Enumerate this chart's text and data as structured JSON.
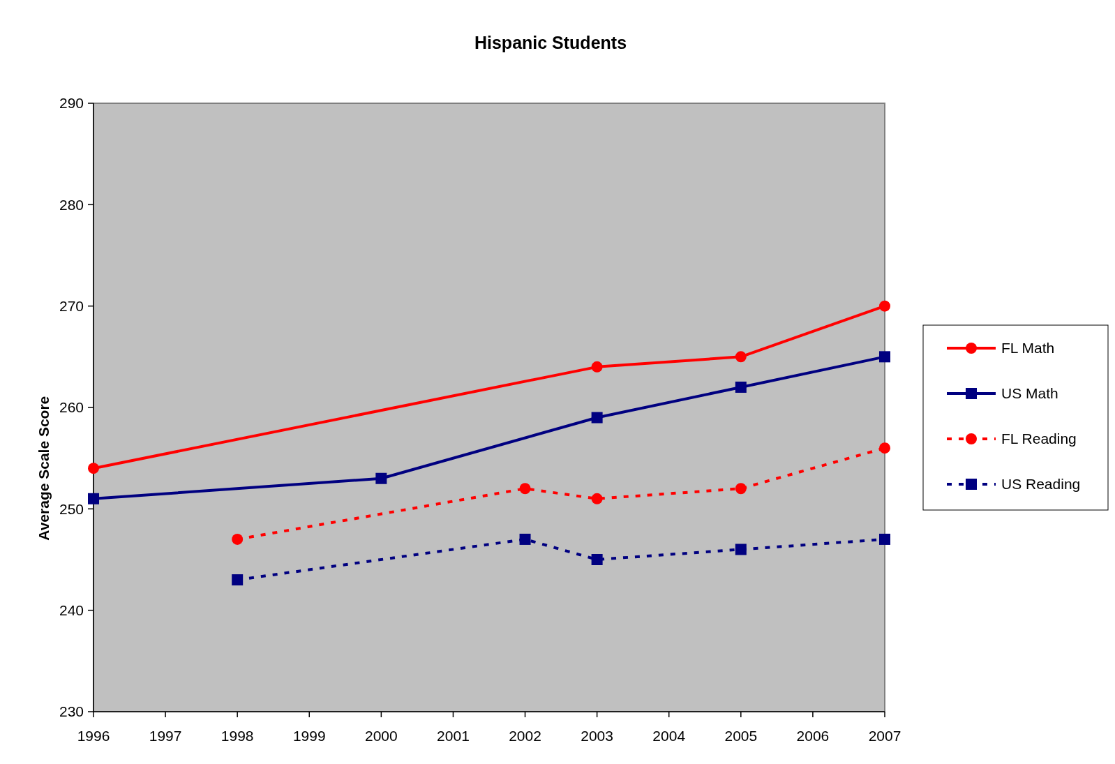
{
  "chart_data": {
    "type": "line",
    "title": "Hispanic Students",
    "ylabel": "Average Scale Score",
    "xlim": [
      1996,
      2007
    ],
    "xticks": [
      1996,
      1997,
      1998,
      1999,
      2000,
      2001,
      2002,
      2003,
      2004,
      2005,
      2006,
      2007
    ],
    "ylim": [
      230,
      290
    ],
    "yticks": [
      230,
      240,
      250,
      260,
      270,
      280,
      290
    ],
    "grid": false,
    "legend": "right",
    "series": [
      {
        "name": "FL Math",
        "color": "#ff0000",
        "marker": "circle",
        "line_style": "solid",
        "x": [
          1996,
          2003,
          2005,
          2007
        ],
        "values": [
          254,
          264,
          265,
          270
        ]
      },
      {
        "name": "US Math",
        "color": "#000080",
        "marker": "square",
        "line_style": "solid",
        "x": [
          1996,
          2000,
          2003,
          2005,
          2007
        ],
        "values": [
          251,
          253,
          259,
          262,
          265
        ]
      },
      {
        "name": "FL Reading",
        "color": "#ff0000",
        "marker": "circle",
        "line_style": "dotted",
        "x": [
          1998,
          2002,
          2003,
          2005,
          2007
        ],
        "values": [
          247,
          252,
          251,
          252,
          256
        ]
      },
      {
        "name": "US Reading",
        "color": "#000080",
        "marker": "square",
        "line_style": "dotted",
        "x": [
          1998,
          2002,
          2003,
          2005,
          2007
        ],
        "values": [
          243,
          247,
          245,
          246,
          247
        ]
      }
    ]
  }
}
